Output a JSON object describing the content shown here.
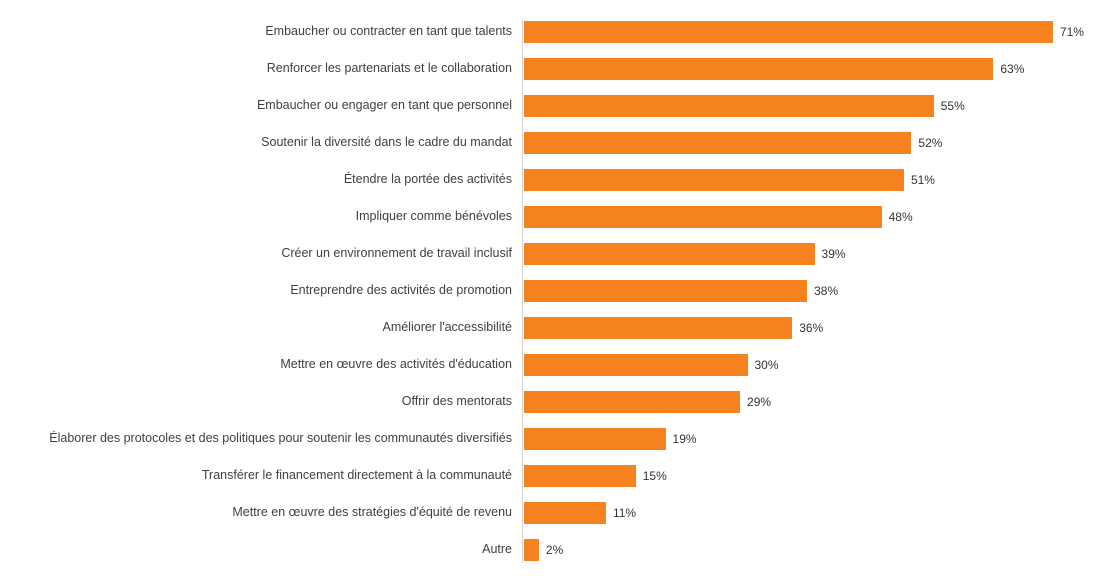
{
  "chart_data": {
    "type": "bar",
    "orientation": "horizontal",
    "title": "",
    "xlabel": "",
    "ylabel": "",
    "xlim": [
      0,
      80
    ],
    "grid": false,
    "legend": false,
    "bar_color": "#f6821f",
    "axis_line_color": "#d6d6d6",
    "label_color": "#404040",
    "value_color": "#333333",
    "categories": [
      "Embaucher ou contracter en tant que talents",
      "Renforcer les partenariats et le collaboration",
      "Embaucher ou engager en tant que personnel",
      "Soutenir la diversité dans le cadre du mandat",
      "Étendre la portée des activités",
      "Impliquer comme bénévoles",
      "Créer un environnement de travail inclusif",
      "Entreprendre des activités de promotion",
      "Améliorer l'accessibilité",
      "Mettre en œuvre des activités d'éducation",
      "Offrir des mentorats",
      "Élaborer des protocoles et des politiques pour soutenir les communautés diversifiés",
      "Transférer le financement directement à la communauté",
      "Mettre en œuvre des stratégies d'équité de revenu",
      "Autre"
    ],
    "values": [
      71,
      63,
      55,
      52,
      51,
      48,
      39,
      38,
      36,
      30,
      29,
      19,
      15,
      11,
      2
    ],
    "value_labels": [
      "71%",
      "63%",
      "55%",
      "52%",
      "51%",
      "48%",
      "39%",
      "38%",
      "36%",
      "30%",
      "29%",
      "19%",
      "15%",
      "11%",
      "2%"
    ]
  }
}
